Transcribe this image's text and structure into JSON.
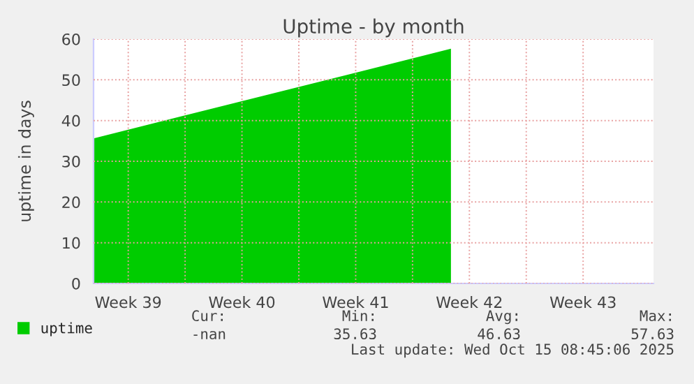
{
  "chart_data": {
    "type": "area",
    "title": "Uptime - by month",
    "ylabel": "uptime in days",
    "series": [
      {
        "name": "uptime",
        "color": "#00cc00",
        "x": [
          "2025-09-23T08:45",
          "2025-10-15T08:45"
        ],
        "values": [
          35.63,
          57.63
        ]
      }
    ],
    "xlim": [
      "2025-09-23T08:45",
      "2025-10-27T20:00"
    ],
    "xticks": [
      {
        "value": "2025-09-25T12:00",
        "label": "Week 39"
      },
      {
        "value": "2025-09-29T00:00",
        "label": null
      },
      {
        "value": "2025-10-02T12:00",
        "label": "Week 40"
      },
      {
        "value": "2025-10-06T00:00",
        "label": null
      },
      {
        "value": "2025-10-09T12:00",
        "label": "Week 41"
      },
      {
        "value": "2025-10-13T00:00",
        "label": null
      },
      {
        "value": "2025-10-16T12:00",
        "label": "Week 42"
      },
      {
        "value": "2025-10-20T00:00",
        "label": null
      },
      {
        "value": "2025-10-23T12:00",
        "label": "Week 43"
      }
    ],
    "ylim": [
      0,
      60
    ],
    "yticks": [
      0,
      10,
      20,
      30,
      40,
      50,
      60
    ],
    "grid": true,
    "legend": "bottom left",
    "annotations": [
      "Cur:",
      "Min:",
      "Avg:",
      "Max:",
      "-nan",
      "35.63",
      "46.63",
      "57.63",
      "Last update: Wed Oct 15 08:45:06 2025"
    ]
  }
}
